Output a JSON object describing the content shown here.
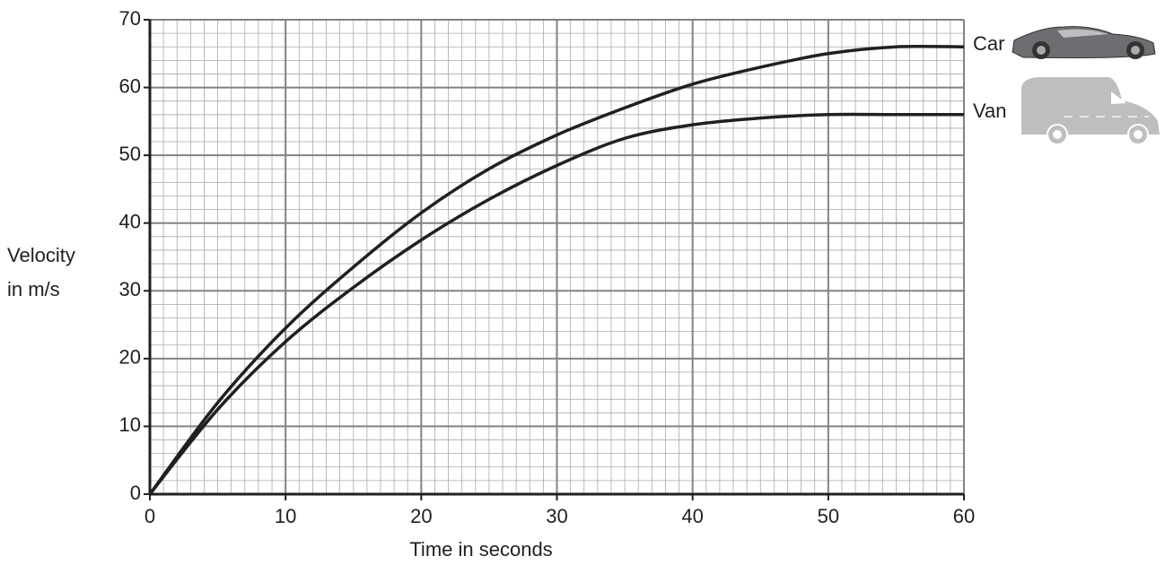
{
  "chart_data": {
    "type": "line",
    "x": [
      0,
      5,
      10,
      15,
      20,
      25,
      30,
      35,
      40,
      45,
      50,
      55,
      60
    ],
    "series": [
      {
        "name": "Car",
        "color": "#231f20",
        "values": [
          0,
          13.5,
          24.5,
          33.5,
          41.5,
          48,
          53,
          57,
          60.5,
          63,
          65,
          66,
          66
        ]
      },
      {
        "name": "Van",
        "color": "#231f20",
        "values": [
          0,
          12.5,
          22.5,
          30.5,
          37.5,
          43.5,
          48.5,
          52.5,
          54.5,
          55.5,
          56,
          56,
          56
        ]
      }
    ],
    "x_label": "Time in seconds",
    "y_label": [
      "Velocity",
      "in m/s"
    ],
    "xlim": [
      0,
      60
    ],
    "xticks": [
      0,
      10,
      20,
      30,
      40,
      50,
      60
    ],
    "ylim": [
      0,
      70
    ],
    "yticks": [
      0,
      10,
      20,
      30,
      40,
      50,
      60,
      70
    ],
    "grid": true
  }
}
